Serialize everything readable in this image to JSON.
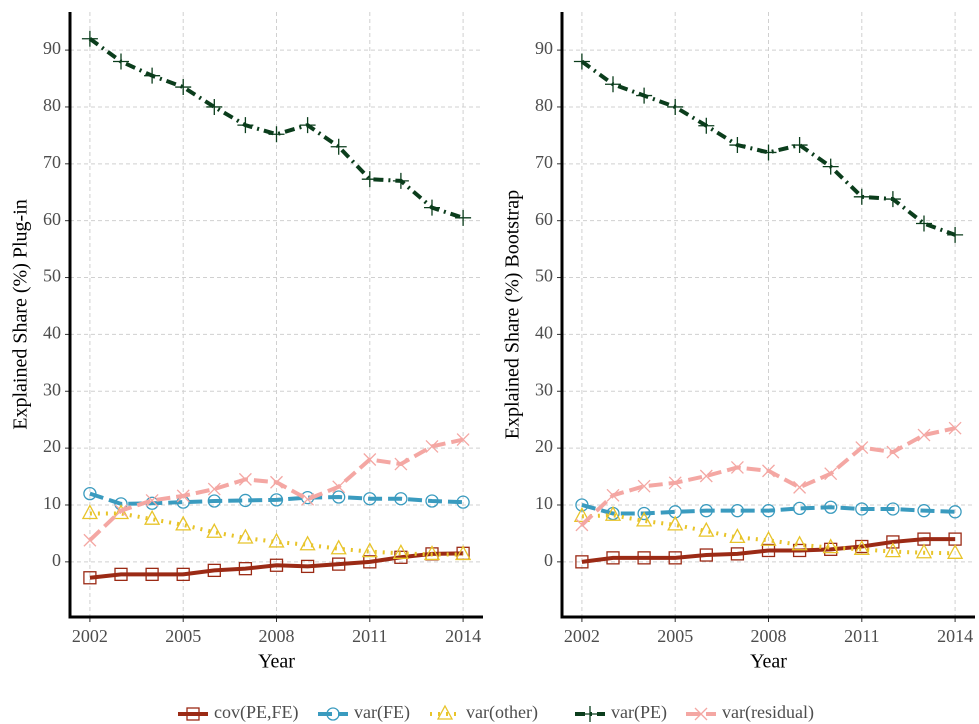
{
  "chart_data": [
    {
      "type": "line",
      "xlabel": "Year",
      "ylabel": "Explained Share (%) Plug-in",
      "x": [
        2002,
        2003,
        2004,
        2005,
        2006,
        2007,
        2008,
        2009,
        2010,
        2011,
        2012,
        2013,
        2014
      ],
      "xlim": [
        2001.36,
        2014.64
      ],
      "xticks": [
        2002,
        2005,
        2008,
        2011,
        2014
      ],
      "ylim": [
        -9.7,
        96.7
      ],
      "yticks": [
        0,
        10,
        20,
        30,
        40,
        50,
        60,
        70,
        80,
        90
      ],
      "grid": true,
      "series": [
        {
          "name": "cov(PE,FE)",
          "color": "#9b2a15",
          "marker": "square",
          "dash": "solid",
          "values": [
            -2.8,
            -2.2,
            -2.2,
            -2.2,
            -1.5,
            -1.2,
            -0.6,
            -0.8,
            -0.4,
            0,
            0.8,
            1.4,
            1.5
          ]
        },
        {
          "name": "var(FE)",
          "color": "#3a9bbf",
          "marker": "circle",
          "dash": "longdash",
          "values": [
            12,
            10.2,
            10.3,
            10.5,
            10.7,
            10.8,
            10.9,
            11.3,
            11.4,
            11.1,
            11.1,
            10.7,
            10.5
          ]
        },
        {
          "name": "var(other)",
          "color": "#e8c42a",
          "marker": "triangle",
          "dash": "dotted",
          "values": [
            8.5,
            8.5,
            7.5,
            6.5,
            5.2,
            4.2,
            3.5,
            3.0,
            2.3,
            1.8,
            1.5,
            1.3,
            1.3
          ]
        },
        {
          "name": "var(PE)",
          "color": "#0b3d1c",
          "marker": "plus",
          "dash": "dotdash",
          "values": [
            92,
            88,
            85.5,
            83.5,
            80,
            76.8,
            75.2,
            76.8,
            73,
            67.3,
            67,
            62.3,
            60.5
          ]
        },
        {
          "name": "var(residual)",
          "color": "#f4a7a3",
          "marker": "cross",
          "dash": "longdash",
          "values": [
            3.8,
            9,
            10.8,
            11.6,
            12.8,
            14.5,
            14,
            11,
            13.2,
            18,
            17.2,
            20.3,
            21.5
          ]
        }
      ]
    },
    {
      "type": "line",
      "xlabel": "Year",
      "ylabel": "Explained Share (%) Bootstrap",
      "x": [
        2002,
        2003,
        2004,
        2005,
        2006,
        2007,
        2008,
        2009,
        2010,
        2011,
        2012,
        2013,
        2014
      ],
      "xlim": [
        2001.36,
        2014.64
      ],
      "xticks": [
        2002,
        2005,
        2008,
        2011,
        2014
      ],
      "ylim": [
        -9.7,
        96.7
      ],
      "yticks": [
        0,
        10,
        20,
        30,
        40,
        50,
        60,
        70,
        80,
        90
      ],
      "grid": true,
      "series": [
        {
          "color": "#9b2a15",
          "marker": "square",
          "dash": "solid",
          "values": [
            0,
            0.7,
            0.7,
            0.7,
            1.2,
            1.4,
            2,
            2,
            2.2,
            2.7,
            3.5,
            4,
            4
          ]
        },
        {
          "color": "#3a9bbf",
          "marker": "circle",
          "dash": "longdash",
          "values": [
            10,
            8.5,
            8.5,
            8.8,
            9,
            9,
            9,
            9.4,
            9.6,
            9.3,
            9.3,
            9,
            8.8
          ]
        },
        {
          "color": "#e8c42a",
          "marker": "triangle",
          "dash": "dotted",
          "values": [
            8,
            8.2,
            7.2,
            6.5,
            5.4,
            4.3,
            3.8,
            3.0,
            2.5,
            2.2,
            1.8,
            1.6,
            1.5
          ]
        },
        {
          "color": "#0b3d1c",
          "marker": "plus",
          "dash": "dotdash",
          "values": [
            88,
            84,
            82,
            80,
            76.7,
            73.3,
            72,
            73.3,
            69.5,
            64.2,
            63.8,
            59.5,
            57.5
          ]
        },
        {
          "color": "#f4a7a3",
          "marker": "cross",
          "dash": "longdash",
          "values": [
            6.5,
            11.7,
            13.3,
            13.9,
            15.1,
            16.6,
            16,
            13.1,
            15.5,
            20.1,
            19.3,
            22.3,
            23.5
          ]
        }
      ]
    }
  ]
}
